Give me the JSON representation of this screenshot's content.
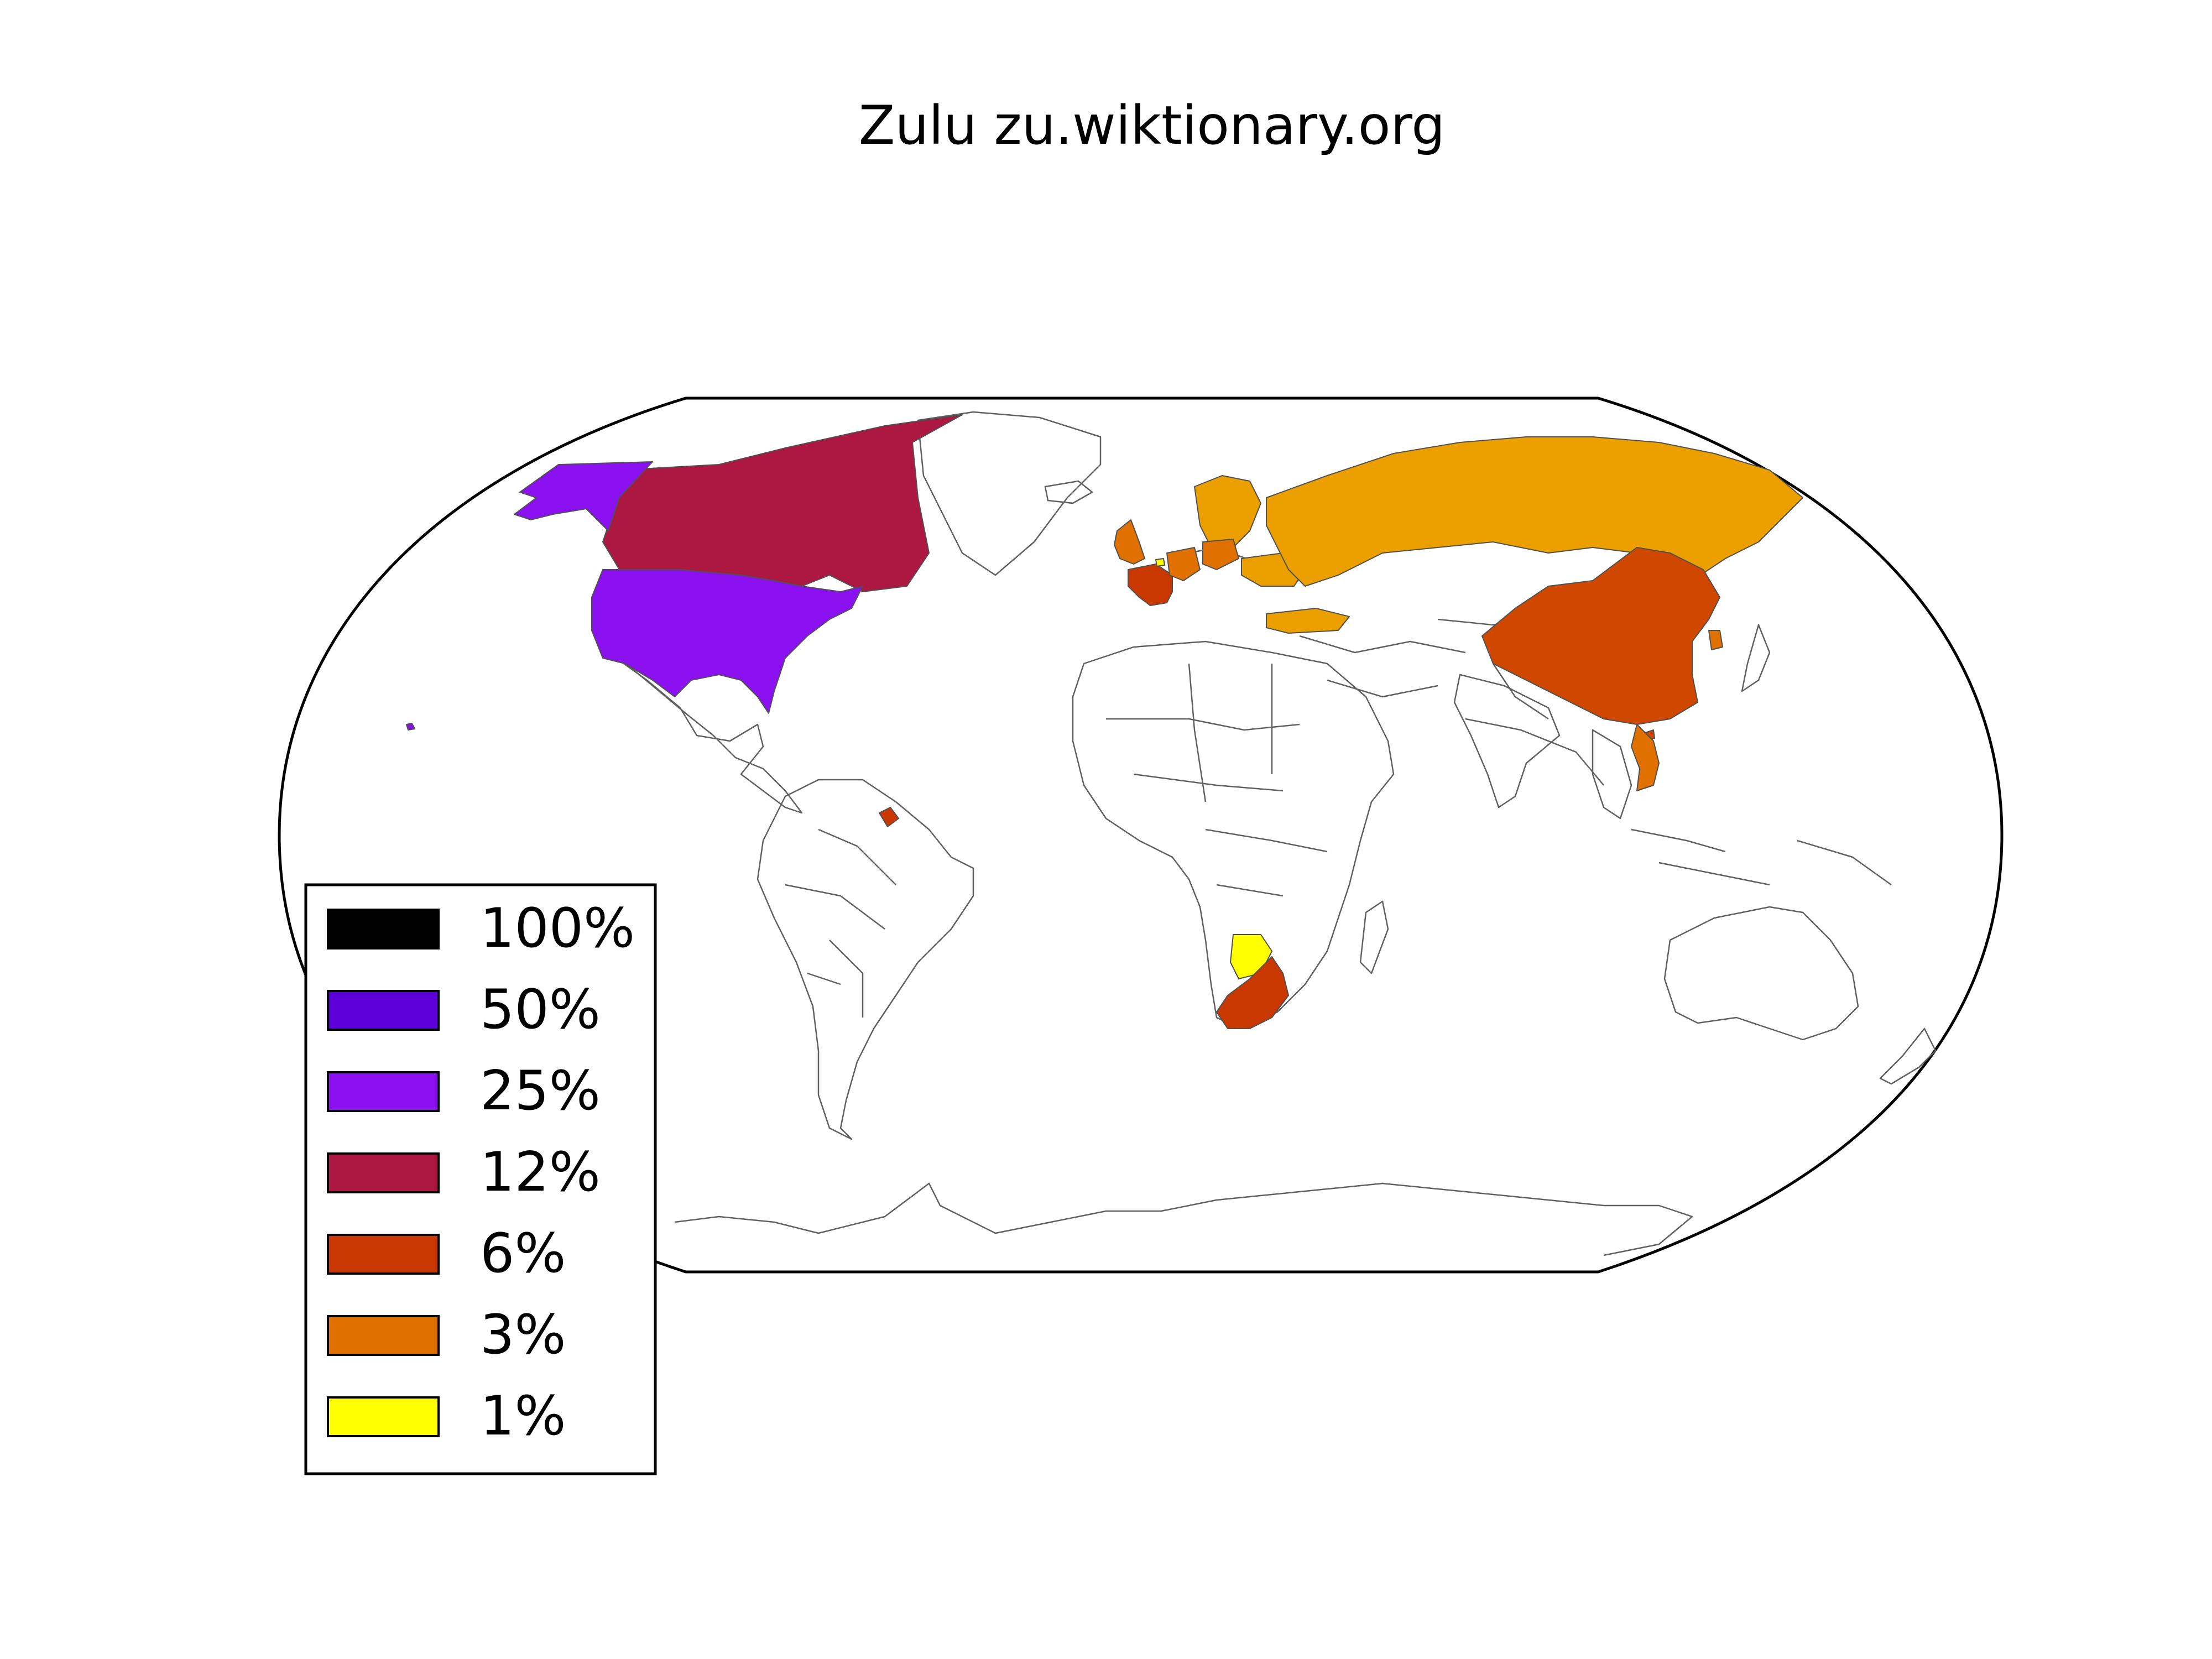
{
  "title": "Zulu zu.wiktionary.org",
  "legend": {
    "position": "bottom-left",
    "items": [
      {
        "label": "100%",
        "color": "#000000"
      },
      {
        "label": "50%",
        "color": "#5b00d8"
      },
      {
        "label": "25%",
        "color": "#8a10f0"
      },
      {
        "label": "12%",
        "color": "#ad1842"
      },
      {
        "label": "6%",
        "color": "#c83800"
      },
      {
        "label": "3%",
        "color": "#e07000"
      },
      {
        "label": "1%",
        "color": "#ffff00"
      }
    ]
  },
  "regions": [
    {
      "name": "United States",
      "bucket": "25%",
      "color": "#8a10f0"
    },
    {
      "name": "Canada",
      "bucket": "12%",
      "color": "#ad1842"
    },
    {
      "name": "Greenland",
      "bucket": "none",
      "color": "#ffffff"
    },
    {
      "name": "South Africa",
      "bucket": "6%",
      "color": "#c83800"
    },
    {
      "name": "Botswana",
      "bucket": "1%",
      "color": "#ffff00"
    },
    {
      "name": "China",
      "bucket": "6%",
      "color": "#d04800"
    },
    {
      "name": "France",
      "bucket": "6%",
      "color": "#c83800"
    },
    {
      "name": "French Guiana",
      "bucket": "6%",
      "color": "#c83800"
    },
    {
      "name": "Russia",
      "bucket": "3%",
      "color": "#eca000"
    },
    {
      "name": "Scandinavia",
      "bucket": "3%",
      "color": "#eca000"
    },
    {
      "name": "United Kingdom",
      "bucket": "3%",
      "color": "#e07000"
    },
    {
      "name": "Germany",
      "bucket": "3%",
      "color": "#e07000"
    },
    {
      "name": "Poland",
      "bucket": "3%",
      "color": "#e07000"
    },
    {
      "name": "Ukraine",
      "bucket": "3%",
      "color": "#eca000"
    },
    {
      "name": "Turkey",
      "bucket": "3%",
      "color": "#eca000"
    },
    {
      "name": "Vietnam",
      "bucket": "3%",
      "color": "#e07000"
    },
    {
      "name": "South Korea",
      "bucket": "3%",
      "color": "#e07000"
    }
  ]
}
